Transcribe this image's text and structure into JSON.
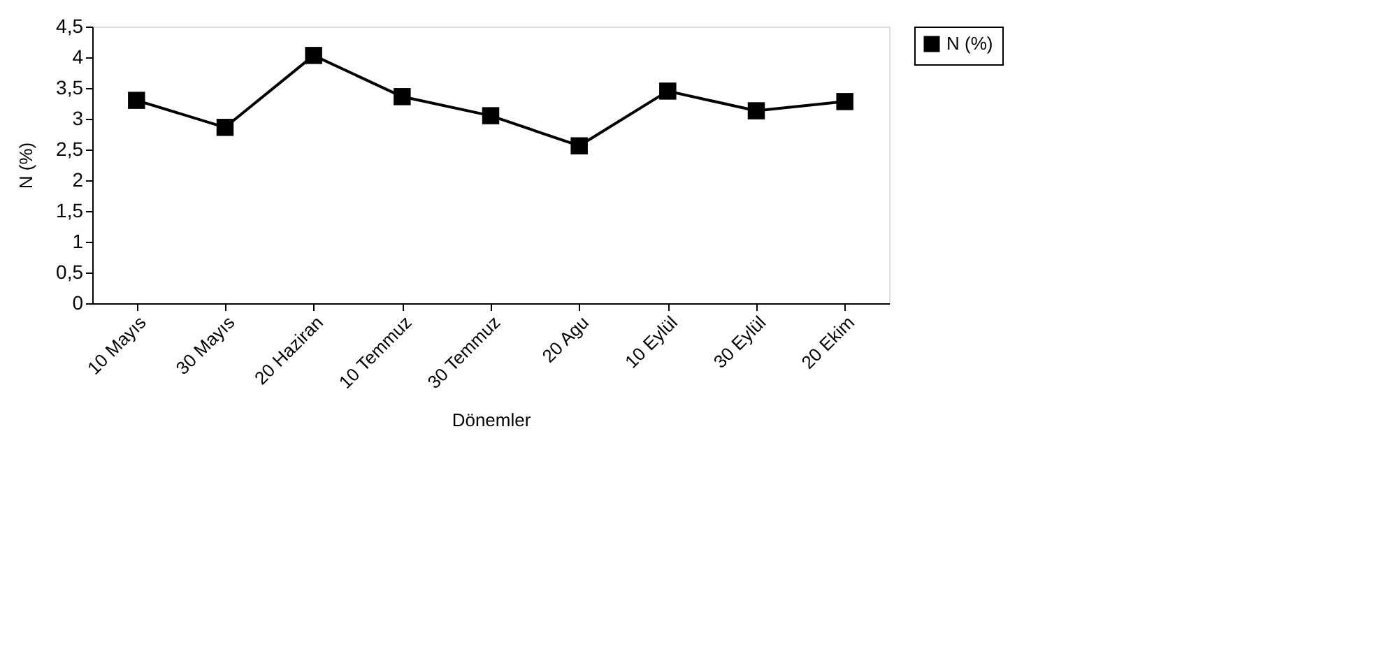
{
  "chart_data": {
    "type": "line",
    "xlabel": "Dönemler",
    "ylabel": "N (%)",
    "categories": [
      "10 Mayıs",
      "30 Mayıs",
      "20 Haziran",
      "10 Temmuz",
      "30 Temmuz",
      "20 Agu",
      "10 Eylül",
      "30 Eylül",
      "20 Ekim"
    ],
    "series": [
      {
        "name": "N (%)",
        "color": "#000000",
        "values": [
          3.3,
          2.86,
          4.03,
          3.36,
          3.05,
          2.56,
          3.45,
          3.13,
          3.28
        ]
      }
    ],
    "ylim": [
      0,
      4.5
    ],
    "yticks": [
      0,
      {
        "value": 0.5,
        "label": "0,5"
      },
      1,
      {
        "value": 1.5,
        "label": "1,5"
      },
      2,
      {
        "value": 2.5,
        "label": "2,5"
      },
      3,
      {
        "value": 3.5,
        "label": "3,5"
      },
      4,
      {
        "value": 4.5,
        "label": "4,5"
      }
    ],
    "grid": false,
    "legend": "right",
    "marker": "square",
    "line_style": "solid"
  }
}
